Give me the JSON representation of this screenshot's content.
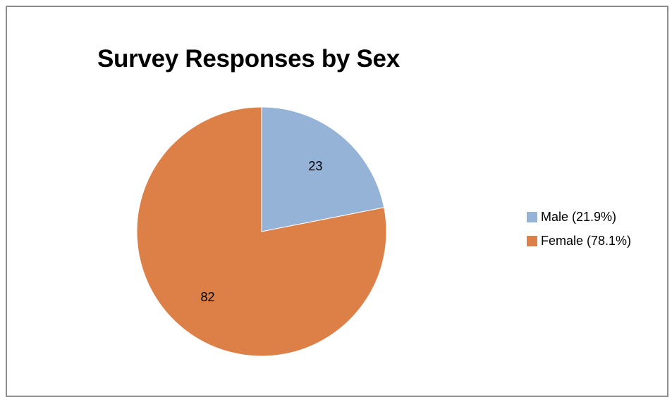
{
  "chart_data": {
    "type": "pie",
    "title": "Survey Responses by Sex",
    "categories": [
      "Male (21.9%)",
      "Female (78.1%)"
    ],
    "values": [
      23,
      82
    ],
    "data_labels": [
      "23",
      "82"
    ],
    "colors": [
      "#95b3d7",
      "#dd8047"
    ],
    "legend_position": "right"
  }
}
